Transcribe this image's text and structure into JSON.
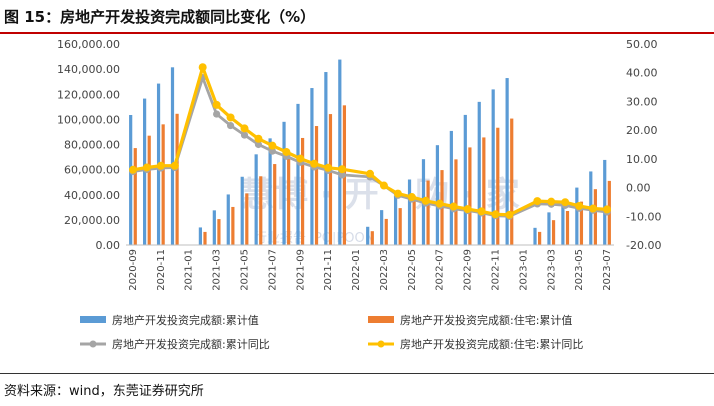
{
  "title": "图 15：房地产开发投资完成额同比变化（%）",
  "source": "资料来源：wind，东莞证券研究所",
  "watermark": {
    "main": "慧博 · 开 · 购 · 家",
    "sub": "行业报告 IPO|POON"
  },
  "chart_data": {
    "type": "bar+line",
    "categories": [
      "2020-09",
      "2020-10",
      "2020-11",
      "2020-12",
      "2021-01",
      "2021-02",
      "2021-03",
      "2021-04",
      "2021-05",
      "2021-06",
      "2021-07",
      "2021-08",
      "2021-09",
      "2021-10",
      "2021-11",
      "2021-12",
      "2022-01",
      "2022-02",
      "2022-03",
      "2022-04",
      "2022-05",
      "2022-06",
      "2022-07",
      "2022-08",
      "2022-09",
      "2022-10",
      "2022-11",
      "2022-12",
      "2023-01",
      "2023-02",
      "2023-03",
      "2023-04",
      "2023-05",
      "2023-06",
      "2023-07"
    ],
    "x_tick_labels": [
      "2020-09",
      "2020-11",
      "2021-01",
      "2021-03",
      "2021-05",
      "2021-07",
      "2021-09",
      "2021-11",
      "2022-01",
      "2022-03",
      "2022-05",
      "2022-07",
      "2022-09",
      "2022-11",
      "2023-01",
      "2023-03",
      "2023-05",
      "2023-07"
    ],
    "y_left": {
      "min": 0,
      "max": 160000,
      "step": 20000,
      "tick_labels": [
        "0.00",
        "20,000.00",
        "40,000.00",
        "60,000.00",
        "80,000.00",
        "100,000.00",
        "120,000.00",
        "140,000.00",
        "160,000.00"
      ]
    },
    "y_right": {
      "min": -20,
      "max": 50,
      "step": 10,
      "tick_labels": [
        "-20.00",
        "-10.00",
        "0.00",
        "10.00",
        "20.00",
        "30.00",
        "40.00",
        "50.00"
      ]
    },
    "series": [
      {
        "name": "房地产开发投资完成额:累计值",
        "type": "bar",
        "axis": "left",
        "color": "#5b9bd5",
        "values": [
          103484,
          116556,
          128492,
          141443,
          null,
          13986,
          27576,
          40241,
          54318,
          72179,
          84895,
          98060,
          112332,
          124935,
          137688,
          147602,
          null,
          14499,
          27765,
          39154,
          52134,
          68314,
          79462,
          90809,
          103559,
          113945,
          123863,
          132895,
          null,
          13669,
          25974,
          35514,
          45701,
          58550,
          67717
        ]
      },
      {
        "name": "房地产开发投资完成额:住宅:累计值",
        "type": "bar",
        "axis": "left",
        "color": "#ed7d31",
        "values": [
          77146,
          87026,
          96045,
          104446,
          null,
          10413,
          20624,
          30292,
          41042,
          54714,
          64433,
          74537,
          85208,
          94706,
          104216,
          111173,
          null,
          10993,
          20761,
          29364,
          39081,
          51315,
          59631,
          68165,
          77684,
          85631,
          93346,
          100646,
          null,
          10433,
          19767,
          27072,
          34514,
          44439,
          51024
        ]
      },
      {
        "name": "房地产开发投资完成额:累计同比",
        "type": "line",
        "axis": "right",
        "color": "#a5a5a5",
        "values": [
          5.6,
          6.3,
          6.8,
          7.0,
          null,
          38.3,
          25.6,
          21.6,
          18.3,
          15.0,
          12.7,
          10.9,
          8.8,
          7.2,
          6.0,
          4.4,
          null,
          3.7,
          0.7,
          -2.7,
          -4.0,
          -5.4,
          -6.4,
          -7.4,
          -8.0,
          -8.8,
          -9.8,
          -10.0,
          null,
          -5.7,
          -5.8,
          -6.2,
          -7.2,
          -7.9,
          -8.5
        ]
      },
      {
        "name": "房地产开发投资完成额:住宅:累计同比",
        "type": "line",
        "axis": "right",
        "color": "#ffc000",
        "values": [
          6.2,
          7.0,
          7.6,
          7.6,
          null,
          41.9,
          28.8,
          24.4,
          20.6,
          17.0,
          14.6,
          12.4,
          10.1,
          8.3,
          6.9,
          6.4,
          null,
          4.8,
          0.7,
          -2.1,
          -3.3,
          -4.6,
          -5.6,
          -6.6,
          -7.5,
          -8.3,
          -9.3,
          -9.5,
          null,
          -4.7,
          -4.9,
          -5.1,
          -6.4,
          -7.3,
          -7.6
        ]
      }
    ],
    "legend_position": "bottom",
    "grid": false
  }
}
